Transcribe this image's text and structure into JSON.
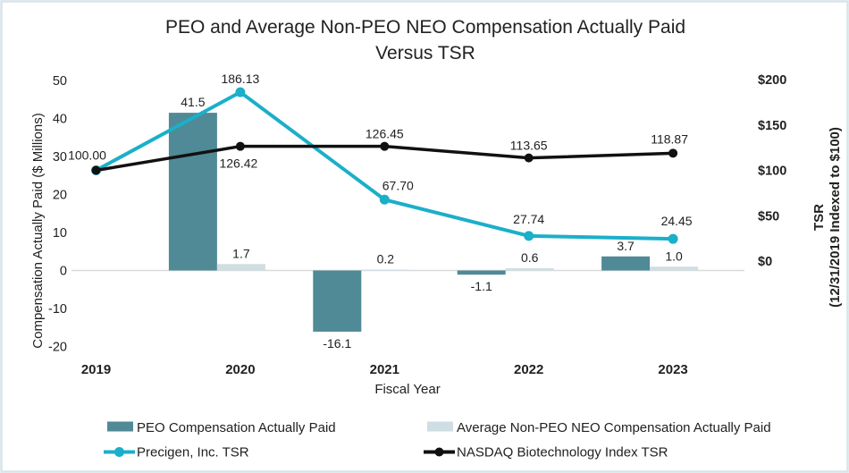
{
  "title": {
    "line1": "PEO and Average Non-PEO NEO Compensation Actually Paid",
    "line2": "Versus TSR"
  },
  "colors": {
    "bar_dark_teal": "#4f8a96",
    "bar_light_gray": "#cfdee3",
    "accent_cyan": "#1bafc9",
    "line_black": "#111111",
    "zero_line": "#d9d9d9",
    "frame_border": "#d7e4ea",
    "text": "#212121"
  },
  "chart_data": {
    "type": "combo",
    "subtypes": [
      "bar",
      "line"
    ],
    "categories": [
      "2019",
      "2020",
      "2021",
      "2022",
      "2023"
    ],
    "x_axis_label": "Fiscal Year",
    "left_axis": {
      "label": "Compensation Actually Paid ($ Millions)",
      "ticks": [
        50,
        40,
        30,
        20,
        10,
        0,
        -10,
        -20
      ],
      "range": [
        -20,
        50
      ]
    },
    "right_axis": {
      "label_line1": "TSR",
      "label_line2": "(12/31/2019 Indexed to $100)",
      "ticks": [
        {
          "label": "$200",
          "value": 200
        },
        {
          "label": "$150",
          "value": 150
        },
        {
          "label": "$100",
          "value": 100
        },
        {
          "label": "$50",
          "value": 50
        },
        {
          "label": "$0",
          "value": 0
        }
      ],
      "range": [
        0,
        200
      ]
    },
    "grid": false,
    "legend_position": "bottom",
    "series": [
      {
        "name": "PEO Compensation Actually Paid",
        "type": "bar",
        "axis": "left",
        "color": "#4f8a96",
        "values": [
          null,
          41.5,
          -16.1,
          -1.1,
          3.7
        ],
        "labels": [
          null,
          "41.5",
          "-16.1",
          "-1.1",
          "3.7"
        ]
      },
      {
        "name": "Average Non-PEO NEO Compensation Actually Paid",
        "type": "bar",
        "axis": "left",
        "color": "#cfdee3",
        "values": [
          null,
          1.7,
          0.2,
          0.6,
          1.0
        ],
        "labels": [
          null,
          "1.7",
          "0.2",
          "0.6",
          "1.0"
        ]
      },
      {
        "name": "Precigen, Inc. TSR",
        "type": "line",
        "axis": "right",
        "color": "#1bafc9",
        "values": [
          100.0,
          186.13,
          67.7,
          27.74,
          24.45
        ],
        "labels": [
          null,
          "186.13",
          "67.70",
          "27.74",
          "24.45"
        ]
      },
      {
        "name": "NASDAQ Biotechnology Index TSR",
        "type": "line",
        "axis": "right",
        "color": "#111111",
        "values": [
          100.0,
          126.42,
          126.45,
          113.65,
          118.87
        ],
        "labels": [
          "100.00",
          "126.42",
          "126.45",
          "113.65",
          "118.87"
        ]
      }
    ]
  },
  "legend": {
    "items": [
      "PEO Compensation Actually Paid",
      "Average Non-PEO NEO Compensation Actually Paid",
      "Precigen, Inc. TSR",
      "NASDAQ Biotechnology Index TSR"
    ]
  }
}
